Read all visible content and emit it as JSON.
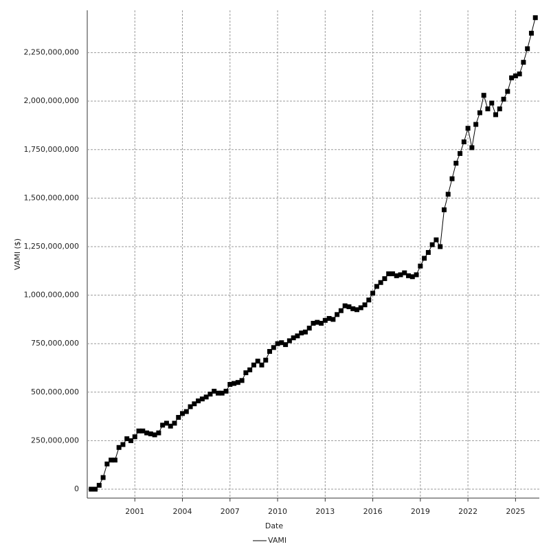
{
  "chart_data": {
    "type": "line",
    "x_label": "Date",
    "y_label": "VAMI ($)",
    "xlim": [
      1998,
      2026.5
    ],
    "xticks": [
      2001,
      2004,
      2007,
      2010,
      2013,
      2016,
      2019,
      2022,
      2025
    ],
    "ylim": [
      -46000000,
      2468000000
    ],
    "yticks": [
      0,
      {
        "value": 250000000,
        "label": "250,000,000"
      },
      {
        "value": 500000000,
        "label": "500,000,000"
      },
      {
        "value": 750000000,
        "label": "750,000,000"
      },
      {
        "value": 1000000000,
        "label": "1,000,000,000"
      },
      {
        "value": 1250000000,
        "label": "1,250,000,000"
      },
      {
        "value": 1500000000,
        "label": "1,500,000,000"
      },
      {
        "value": 1750000000,
        "label": "1,750,000,000"
      },
      {
        "value": 2000000000,
        "label": "2,000,000,000"
      },
      {
        "value": 2250000000,
        "label": "2,250,000,000"
      }
    ],
    "grid": true,
    "x": [
      1998.25,
      1998.5,
      1998.75,
      1999,
      1999.25,
      1999.5,
      1999.75,
      2000,
      2000.25,
      2000.5,
      2000.75,
      2001,
      2001.25,
      2001.5,
      2001.75,
      2002,
      2002.25,
      2002.5,
      2002.75,
      2003,
      2003.25,
      2003.5,
      2003.75,
      2004,
      2004.25,
      2004.5,
      2004.75,
      2005,
      2005.25,
      2005.5,
      2005.75,
      2006,
      2006.25,
      2006.5,
      2006.75,
      2007,
      2007.25,
      2007.5,
      2007.75,
      2008,
      2008.25,
      2008.5,
      2008.75,
      2009,
      2009.25,
      2009.5,
      2009.75,
      2010,
      2010.25,
      2010.5,
      2010.75,
      2011,
      2011.25,
      2011.5,
      2011.75,
      2012,
      2012.25,
      2012.5,
      2012.75,
      2013,
      2013.25,
      2013.5,
      2013.75,
      2014,
      2014.25,
      2014.5,
      2014.75,
      2015,
      2015.25,
      2015.5,
      2015.75,
      2016,
      2016.25,
      2016.5,
      2016.75,
      2017,
      2017.25,
      2017.5,
      2017.75,
      2018,
      2018.25,
      2018.5,
      2018.75,
      2019,
      2019.25,
      2019.5,
      2019.75,
      2020,
      2020.25,
      2020.5,
      2020.75,
      2021,
      2021.25,
      2021.5,
      2021.75,
      2022,
      2022.25,
      2022.5,
      2022.75,
      2023,
      2023.25,
      2023.5,
      2023.75,
      2024,
      2024.25,
      2024.5,
      2024.75,
      2025,
      2025.25,
      2025.5,
      2025.75,
      2026,
      2026.25
    ],
    "series": [
      {
        "name": "VAMI",
        "color": "#000000",
        "values": [
          0,
          0,
          20000000,
          60000000,
          130000000,
          150000000,
          150000000,
          215000000,
          230000000,
          260000000,
          250000000,
          270000000,
          300000000,
          300000000,
          290000000,
          285000000,
          280000000,
          290000000,
          330000000,
          340000000,
          325000000,
          340000000,
          370000000,
          390000000,
          400000000,
          425000000,
          440000000,
          455000000,
          465000000,
          475000000,
          490000000,
          505000000,
          495000000,
          495000000,
          505000000,
          540000000,
          545000000,
          550000000,
          560000000,
          600000000,
          615000000,
          640000000,
          660000000,
          640000000,
          665000000,
          710000000,
          730000000,
          750000000,
          755000000,
          745000000,
          765000000,
          780000000,
          790000000,
          805000000,
          810000000,
          830000000,
          855000000,
          860000000,
          855000000,
          870000000,
          880000000,
          875000000,
          900000000,
          920000000,
          945000000,
          940000000,
          930000000,
          925000000,
          935000000,
          950000000,
          975000000,
          1010000000,
          1045000000,
          1065000000,
          1085000000,
          1110000000,
          1110000000,
          1100000000,
          1105000000,
          1115000000,
          1100000000,
          1095000000,
          1105000000,
          1150000000,
          1190000000,
          1220000000,
          1260000000,
          1285000000,
          1250000000,
          1440000000,
          1520000000,
          1600000000,
          1680000000,
          1730000000,
          1790000000,
          1860000000,
          1760000000,
          1880000000,
          1940000000,
          2030000000,
          1960000000,
          1990000000,
          1930000000,
          1960000000,
          2010000000,
          2050000000,
          2120000000,
          2130000000,
          2140000000,
          2200000000,
          2270000000,
          2350000000,
          2430000000
        ]
      }
    ]
  }
}
